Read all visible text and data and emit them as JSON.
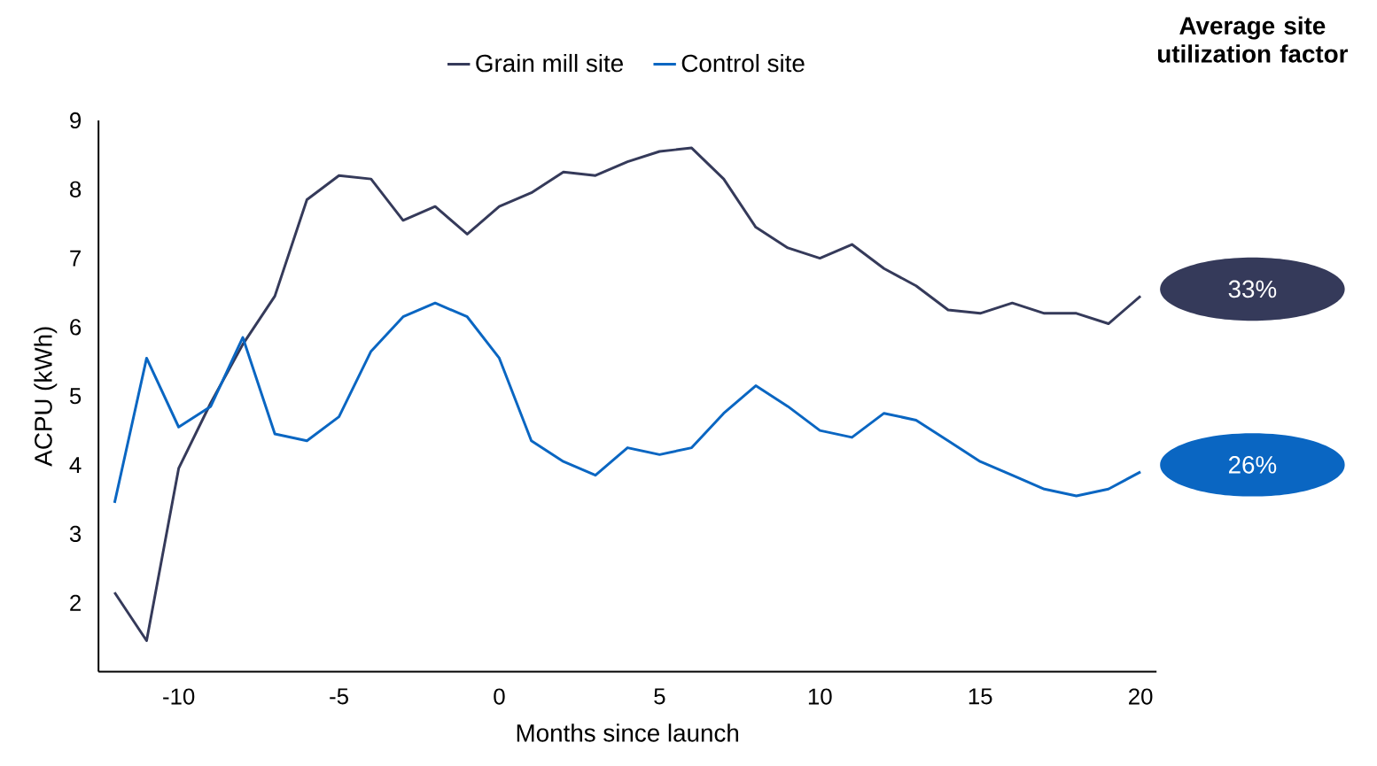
{
  "chart_data": {
    "type": "line",
    "xlabel": "Months since launch",
    "ylabel": "ACPU (kWh)",
    "x": [
      -12,
      -11,
      -10,
      -9,
      -8,
      -7,
      -6,
      -5,
      -4,
      -3,
      -2,
      -1,
      0,
      1,
      2,
      3,
      4,
      5,
      6,
      7,
      8,
      9,
      10,
      11,
      12,
      13,
      14,
      15,
      16,
      17,
      18,
      19,
      20
    ],
    "series": [
      {
        "name": "Grain mill site",
        "color": "#353a5a",
        "values": [
          2.15,
          1.45,
          3.95,
          4.9,
          5.75,
          6.45,
          7.85,
          8.2,
          8.15,
          7.55,
          7.75,
          7.35,
          7.75,
          7.95,
          8.25,
          8.2,
          8.4,
          8.55,
          8.6,
          8.15,
          7.45,
          7.15,
          7.0,
          7.2,
          6.85,
          6.6,
          6.25,
          6.2,
          6.35,
          6.2,
          6.2,
          6.05,
          6.45
        ]
      },
      {
        "name": "Control site",
        "color": "#0a66c2",
        "values": [
          3.45,
          5.55,
          4.55,
          4.85,
          5.85,
          4.45,
          4.35,
          4.7,
          5.65,
          6.15,
          6.35,
          6.15,
          5.55,
          4.35,
          4.05,
          3.85,
          4.25,
          4.15,
          4.25,
          4.75,
          5.15,
          4.85,
          4.5,
          4.4,
          4.75,
          4.65,
          4.35,
          4.05,
          3.85,
          3.65,
          3.55,
          3.65,
          3.9
        ]
      }
    ],
    "xlim": [
      -12.5,
      20.5
    ],
    "ylim": [
      1,
      9
    ],
    "xticks": [
      -10,
      -5,
      0,
      5,
      10,
      15,
      20
    ],
    "yticks": [
      2,
      3,
      4,
      5,
      6,
      7,
      8,
      9
    ],
    "legend": "top",
    "annotations": [
      "Average site utilization factor",
      "33%",
      "26%"
    ]
  }
}
